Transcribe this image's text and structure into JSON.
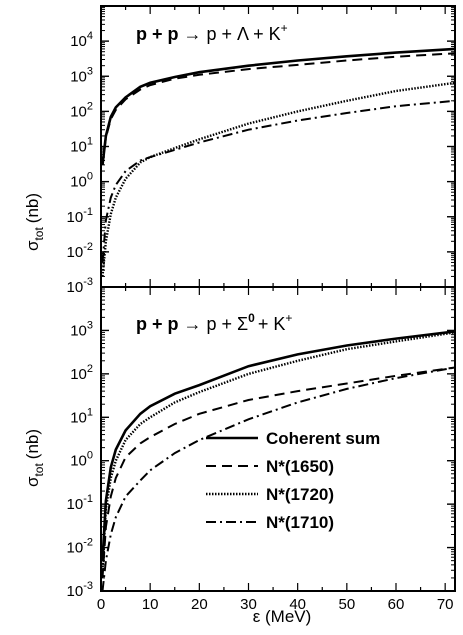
{
  "chart_data": [
    {
      "type": "line",
      "title_lhs": "p + p",
      "title_arrow": "→",
      "title_rhs": "p + Λ + K",
      "title_sup": "+",
      "xlabel": "",
      "ylabel": "σ",
      "ylabel_sub": "tot",
      "ylabel_unit": "(nb)",
      "xlim": [
        0,
        72
      ],
      "ylim": [
        0.001,
        100000
      ],
      "yscale": "log",
      "yticks": [
        {
          "base": "10",
          "exp": "-3"
        },
        {
          "base": "10",
          "exp": "-2"
        },
        {
          "base": "10",
          "exp": "-1"
        },
        {
          "base": "10",
          "exp": "0"
        },
        {
          "base": "10",
          "exp": "1"
        },
        {
          "base": "10",
          "exp": "2"
        },
        {
          "base": "10",
          "exp": "3"
        },
        {
          "base": "10",
          "exp": "4"
        }
      ],
      "series": [
        {
          "style": "solid",
          "x": [
            0.3,
            1,
            2,
            3,
            5,
            8,
            10,
            15,
            20,
            30,
            40,
            50,
            60,
            72
          ],
          "y": [
            3,
            20,
            70,
            130,
            250,
            500,
            650,
            950,
            1300,
            2000,
            2800,
            3700,
            4700,
            6000
          ]
        },
        {
          "style": "dashed",
          "x": [
            0.3,
            1,
            2,
            3,
            5,
            8,
            10,
            15,
            20,
            30,
            40,
            50,
            60,
            72
          ],
          "y": [
            3,
            18,
            60,
            110,
            220,
            420,
            560,
            850,
            1100,
            1600,
            2100,
            2800,
            3600,
            4500
          ]
        },
        {
          "style": "dotted",
          "x": [
            0.3,
            1,
            2,
            3,
            5,
            8,
            10,
            15,
            20,
            30,
            40,
            50,
            60,
            72
          ],
          "y": [
            0.002,
            0.02,
            0.12,
            0.35,
            1.2,
            3.5,
            5,
            9,
            16,
            45,
            100,
            200,
            380,
            650
          ]
        },
        {
          "style": "dashdot",
          "x": [
            0.3,
            1,
            2,
            3,
            5,
            8,
            10,
            15,
            20,
            30,
            40,
            50,
            60,
            72
          ],
          "y": [
            0.005,
            0.08,
            0.35,
            0.8,
            2,
            4,
            5,
            8,
            13,
            30,
            55,
            90,
            140,
            200
          ]
        }
      ]
    },
    {
      "type": "line",
      "title_lhs": "p + p",
      "title_arrow": "→",
      "title_rhs_a": "p + Σ",
      "title_sup_a": "0",
      "title_rhs_b": "+ K",
      "title_sup_b": "+",
      "xlabel": "ε (MeV)",
      "ylabel": "σ",
      "ylabel_sub": "tot",
      "ylabel_unit": "(nb)",
      "xlim": [
        0,
        72
      ],
      "ylim": [
        0.001,
        10000
      ],
      "yscale": "log",
      "xticks": [
        "0",
        "10",
        "20",
        "30",
        "40",
        "50",
        "60",
        "70"
      ],
      "yticks": [
        {
          "base": "10",
          "exp": "-3"
        },
        {
          "base": "10",
          "exp": "-2"
        },
        {
          "base": "10",
          "exp": "-1"
        },
        {
          "base": "10",
          "exp": "0"
        },
        {
          "base": "10",
          "exp": "1"
        },
        {
          "base": "10",
          "exp": "2"
        },
        {
          "base": "10",
          "exp": "3"
        }
      ],
      "series": [
        {
          "name": "Coherent sum",
          "style": "solid",
          "x": [
            0.3,
            1,
            2,
            3,
            5,
            8,
            10,
            15,
            20,
            30,
            40,
            50,
            60,
            72
          ],
          "y": [
            0.005,
            0.12,
            0.7,
            1.8,
            5,
            12,
            18,
            35,
            55,
            150,
            280,
            450,
            650,
            950
          ]
        },
        {
          "name": "N*(1650)",
          "style": "dashed",
          "x": [
            0.3,
            1,
            2,
            3,
            5,
            8,
            10,
            15,
            20,
            30,
            40,
            50,
            60,
            72
          ],
          "y": [
            0.002,
            0.03,
            0.15,
            0.4,
            1.2,
            2.5,
            3.5,
            7,
            12,
            25,
            40,
            60,
            90,
            140
          ]
        },
        {
          "name": "N*(1720)",
          "style": "dotted",
          "x": [
            0.3,
            1,
            2,
            3,
            5,
            8,
            10,
            15,
            20,
            30,
            40,
            50,
            60,
            72
          ],
          "y": [
            0.003,
            0.08,
            0.4,
            1.0,
            3,
            7,
            10,
            22,
            38,
            100,
            200,
            370,
            560,
            900
          ]
        },
        {
          "name": "N*(1710)",
          "style": "dashdot",
          "x": [
            0.3,
            1,
            2,
            3,
            5,
            8,
            10,
            15,
            20,
            30,
            40,
            50,
            60,
            72
          ],
          "y": [
            0.001,
            0.005,
            0.02,
            0.05,
            0.15,
            0.35,
            0.6,
            1.5,
            3,
            9,
            22,
            45,
            80,
            140
          ]
        }
      ]
    }
  ]
}
